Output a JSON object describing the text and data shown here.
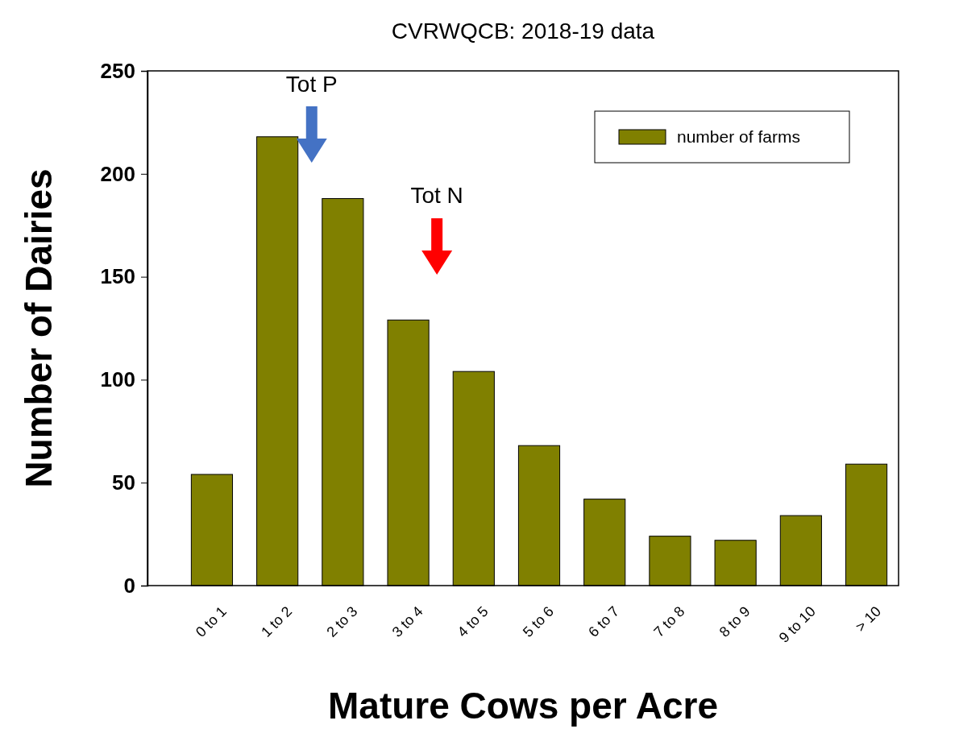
{
  "chart_data": {
    "type": "bar",
    "title": "CVRWQCB:  2018-19 data",
    "xlabel": "Mature Cows per Acre",
    "ylabel": "Number of Dairies",
    "categories": [
      "0 to 1",
      "1 to 2",
      "2 to 3",
      "3 to 4",
      "4 to 5",
      "5 to 6",
      "6 to 7",
      "7 to 8",
      "8 to 9",
      "9 to 10",
      "> 10"
    ],
    "series": [
      {
        "name": "number of farms",
        "color": "#808000",
        "values": [
          54,
          218,
          188,
          129,
          104,
          68,
          42,
          24,
          22,
          34,
          59
        ]
      }
    ],
    "ylim": [
      0,
      250
    ],
    "yticks": [
      0,
      50,
      100,
      150,
      200,
      250
    ],
    "grid": false,
    "legend": "top right",
    "annotations": [
      "Tot P",
      "Tot N"
    ]
  }
}
